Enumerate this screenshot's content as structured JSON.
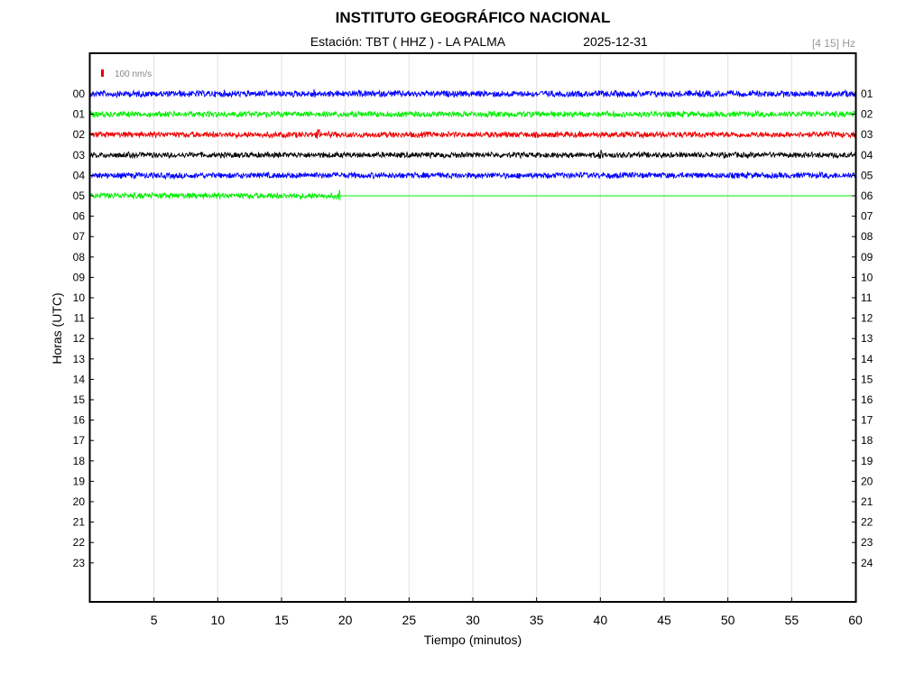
{
  "header": {
    "title": "INSTITUTO GEOGRÁFICO NACIONAL",
    "station": "Estación:  TBT ( HHZ ) - LA PALMA",
    "date": "2025-12-31",
    "filter": "[4 15] Hz"
  },
  "scale": {
    "label": "100 nm/s",
    "color": "#e00000"
  },
  "chart_data": {
    "type": "line",
    "title": "INSTITUTO GEOGRÁFICO NACIONAL",
    "xlabel": "Tiempo (minutos)",
    "ylabel": "Horas (UTC)",
    "xlim": [
      0,
      60
    ],
    "x_ticks": [
      "5",
      "10",
      "15",
      "20",
      "25",
      "30",
      "35",
      "40",
      "45",
      "50",
      "55",
      "60"
    ],
    "x_tick_values": [
      5,
      10,
      15,
      20,
      25,
      30,
      35,
      40,
      45,
      50,
      55,
      60
    ],
    "left_tick_labels": [
      "00",
      "01",
      "02",
      "03",
      "04",
      "05",
      "06",
      "07",
      "08",
      "09",
      "10",
      "11",
      "12",
      "13",
      "14",
      "15",
      "16",
      "17",
      "18",
      "19",
      "20",
      "21",
      "22",
      "23"
    ],
    "right_tick_labels": [
      "01",
      "02",
      "03",
      "04",
      "05",
      "06",
      "07",
      "08",
      "09",
      "10",
      "11",
      "12",
      "13",
      "14",
      "15",
      "16",
      "17",
      "18",
      "19",
      "20",
      "21",
      "22",
      "23",
      "24"
    ],
    "grid": "vertical",
    "color_cycle": [
      "#0000ff",
      "#00ee00",
      "#ee0000",
      "#000000"
    ],
    "series": [
      {
        "hour": "00",
        "color": "#0000ff",
        "x_end": 60,
        "amplitude": 3.2,
        "events": [
          {
            "t": 17.5,
            "amp": 7
          },
          {
            "t": 59.2,
            "amp": 5
          }
        ]
      },
      {
        "hour": "01",
        "color": "#00ee00",
        "x_end": 60,
        "amplitude": 3.0,
        "events": [
          {
            "t": 12.9,
            "amp": 4
          }
        ]
      },
      {
        "hour": "02",
        "color": "#ee0000",
        "x_end": 60,
        "amplitude": 3.0,
        "events": [
          {
            "t": 17.9,
            "amp": 7
          }
        ]
      },
      {
        "hour": "03",
        "color": "#000000",
        "x_end": 60,
        "amplitude": 2.8,
        "events": [
          {
            "t": 40.0,
            "amp": 7
          },
          {
            "t": 18.3,
            "amp": 4
          }
        ]
      },
      {
        "hour": "04",
        "color": "#0000ff",
        "x_end": 60,
        "amplitude": 3.0,
        "events": [
          {
            "t": 16.5,
            "amp": 4
          }
        ]
      },
      {
        "hour": "05",
        "color": "#00ee00",
        "x_end": 19.6,
        "amplitude": 3.0,
        "events": [
          {
            "t": 19.6,
            "amp": 9
          }
        ]
      }
    ]
  }
}
